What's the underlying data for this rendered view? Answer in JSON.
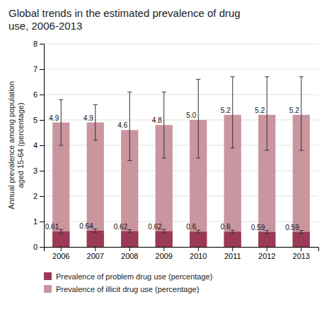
{
  "chart_data": {
    "type": "bar",
    "title": "Global trends in the estimated prevalence of drug\nuse, 2006-2013",
    "y_label": "Annual prevalence among population\naged 15-64 (percentage)",
    "categories": [
      "2006",
      "2007",
      "2008",
      "2009",
      "2010",
      "2011",
      "2012",
      "2013"
    ],
    "series": [
      {
        "name": "Prevalence of problem drug use (percentage)",
        "color": "#9b3a55",
        "values": [
          0.61,
          0.64,
          0.62,
          0.62,
          0.6,
          0.6,
          0.59,
          0.59
        ],
        "errors_upper": [
          0.08,
          0.07,
          0.06,
          0.07,
          0.06,
          0.06,
          0.06,
          0.06
        ],
        "errors_lower": [
          0.08,
          0.07,
          0.06,
          0.07,
          0.06,
          0.06,
          0.06,
          0.06
        ]
      },
      {
        "name": "Prevalence of illicit drug use (percentage)",
        "color": "#c9959f",
        "values": [
          4.9,
          4.9,
          4.6,
          4.8,
          5.0,
          5.2,
          5.2,
          5.2
        ],
        "value_labels": [
          "4.9",
          "4.9",
          "4.6",
          "4.8",
          "5.0",
          "5.2",
          "5.2",
          "5.2"
        ],
        "errors_upper": [
          0.9,
          0.7,
          1.5,
          1.3,
          1.6,
          1.5,
          1.5,
          1.5
        ],
        "errors_lower": [
          0.9,
          0.7,
          1.2,
          1.3,
          1.5,
          1.3,
          1.4,
          1.4
        ]
      }
    ],
    "ylim": [
      0,
      8
    ],
    "yticks": [
      0,
      1,
      2,
      3,
      4,
      5,
      6,
      7,
      8
    ],
    "grid": true,
    "legend": "bottom",
    "data_labels": true
  }
}
